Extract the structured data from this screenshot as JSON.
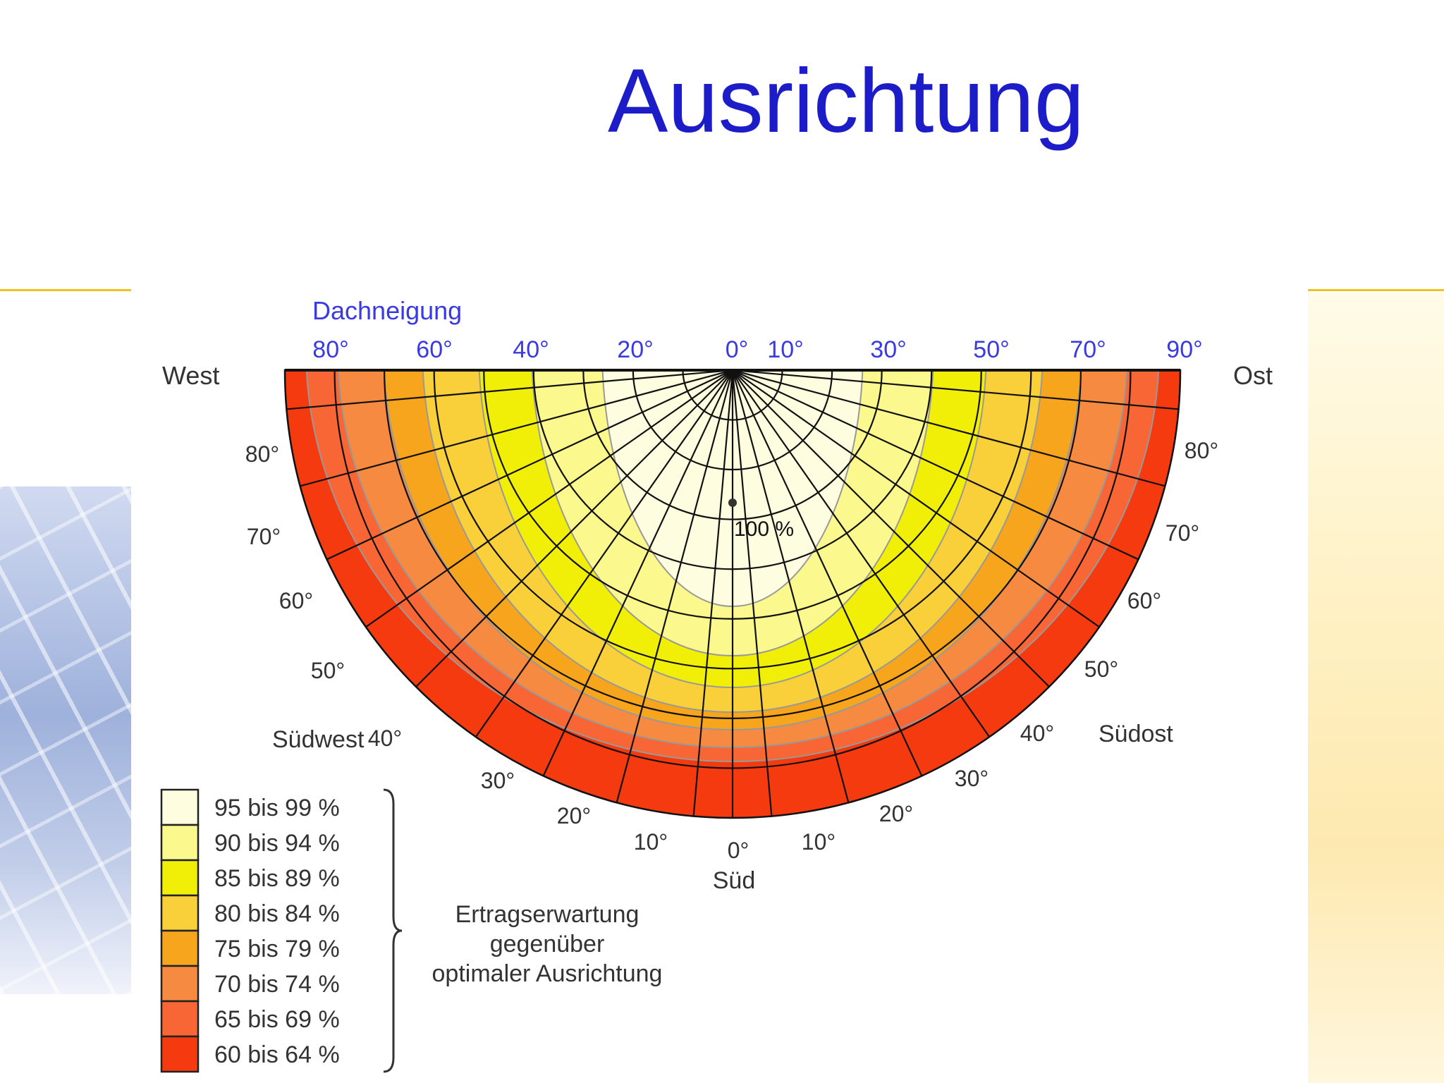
{
  "title": "Ausrichtung",
  "diagram": {
    "tilt_heading": "Dachneigung",
    "top_tilt_labels": [
      "80°",
      "60°",
      "40°",
      "20°",
      "0°",
      "10°",
      "30°",
      "50°",
      "70°",
      "90°"
    ],
    "compass": {
      "west": "West",
      "east": "Ost",
      "southwest": "Südwest",
      "southeast": "Südost",
      "south": "Süd"
    },
    "azimuth_labels_left": [
      "80°",
      "70°",
      "60°",
      "50°",
      "40°",
      "30°",
      "20°",
      "10°"
    ],
    "azimuth_labels_right": [
      "80°",
      "70°",
      "60°",
      "50°",
      "40°",
      "30°",
      "20°",
      "10°"
    ],
    "azimuth_label_center": "0°",
    "optimum_label": "100 %",
    "legend": {
      "items": [
        {
          "label": "95 bis 99 %",
          "color": "#fefde0"
        },
        {
          "label": "90 bis 94 %",
          "color": "#fbf98e"
        },
        {
          "label": "85 bis 89 %",
          "color": "#f1ef08"
        },
        {
          "label": "80 bis 84 %",
          "color": "#f9cf3a"
        },
        {
          "label": "75 bis 79 %",
          "color": "#f6a51c"
        },
        {
          "label": "70 bis 74 %",
          "color": "#f68a40"
        },
        {
          "label": "65 bis 69 %",
          "color": "#f76634"
        },
        {
          "label": "60 bis 64 %",
          "color": "#f43a0e"
        }
      ],
      "caption_lines": [
        "Ertragserwartung",
        "gegenüber",
        "optimaler Ausrichtung"
      ]
    }
  }
}
